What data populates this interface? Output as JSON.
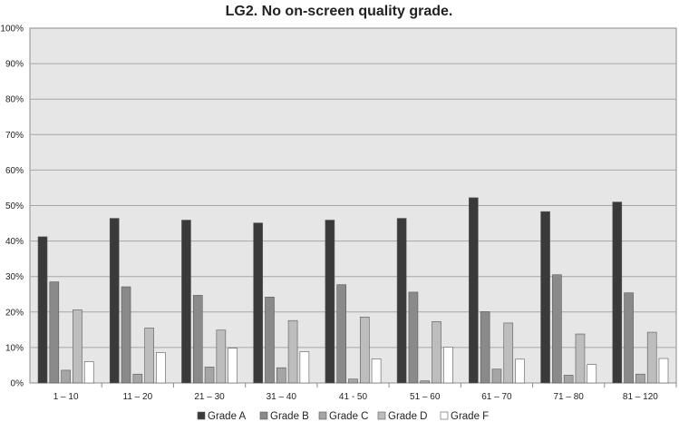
{
  "chart_data": {
    "type": "bar",
    "title": "LG2. No on-screen quality grade.",
    "xlabel": "",
    "ylabel": "",
    "ylim": [
      0,
      100
    ],
    "y_ticks": [
      "0%",
      "10%",
      "20%",
      "30%",
      "40%",
      "50%",
      "60%",
      "70%",
      "80%",
      "90%",
      "100%"
    ],
    "grid": true,
    "legend_position": "bottom",
    "categories": [
      "1 – 10",
      "11 – 20",
      "21 – 30",
      "31 – 40",
      "41 - 50",
      "51 – 60",
      "61 – 70",
      "71 – 80",
      "81 – 120"
    ],
    "series": [
      {
        "name": "Grade A",
        "color": "#3a3a3a",
        "values": [
          41.2,
          46.4,
          45.9,
          45.1,
          45.9,
          46.4,
          52.2,
          48.3,
          51.0
        ]
      },
      {
        "name": "Grade B",
        "color": "#8a8a8a",
        "values": [
          28.5,
          27.1,
          24.7,
          24.2,
          27.7,
          25.6,
          20.1,
          30.5,
          25.4
        ]
      },
      {
        "name": "Grade C",
        "color": "#a5a5a5",
        "values": [
          3.6,
          2.5,
          4.5,
          4.3,
          1.1,
          0.6,
          3.9,
          2.2,
          2.5
        ]
      },
      {
        "name": "Grade D",
        "color": "#bdbdbd",
        "values": [
          20.6,
          15.5,
          14.9,
          17.6,
          18.6,
          17.3,
          16.9,
          13.8,
          14.3
        ]
      },
      {
        "name": "Grade F",
        "color": "#ffffff",
        "values": [
          6.0,
          8.6,
          9.8,
          8.8,
          6.8,
          10.1,
          6.7,
          5.2,
          6.9
        ]
      }
    ]
  }
}
